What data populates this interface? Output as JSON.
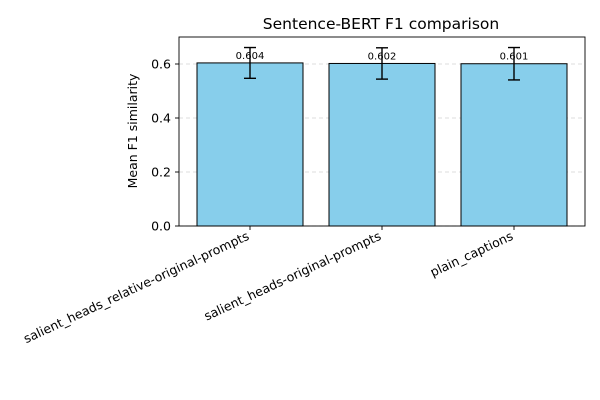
{
  "chart_data": {
    "type": "bar",
    "title": "Sentence-BERT F1 comparison",
    "xlabel": "",
    "ylabel": "Mean F1 similarity",
    "categories": [
      "salient_heads_relative-original-prompts",
      "salient_heads-original-prompts",
      "plain_captions"
    ],
    "values": [
      0.604,
      0.602,
      0.601
    ],
    "errors": [
      0.057,
      0.058,
      0.06
    ],
    "data_labels": [
      "0.604",
      "0.602",
      "0.601"
    ],
    "ylim": [
      0,
      0.7
    ],
    "yticks": [
      0.0,
      0.2,
      0.4,
      0.6
    ],
    "ytick_labels": [
      "0.0",
      "0.2",
      "0.4",
      "0.6"
    ],
    "grid": "y-dashed",
    "legend": "none",
    "colors": {
      "bar_fill": "#87ceeb",
      "bar_edge": "#000000",
      "error_bar": "#000000"
    }
  }
}
